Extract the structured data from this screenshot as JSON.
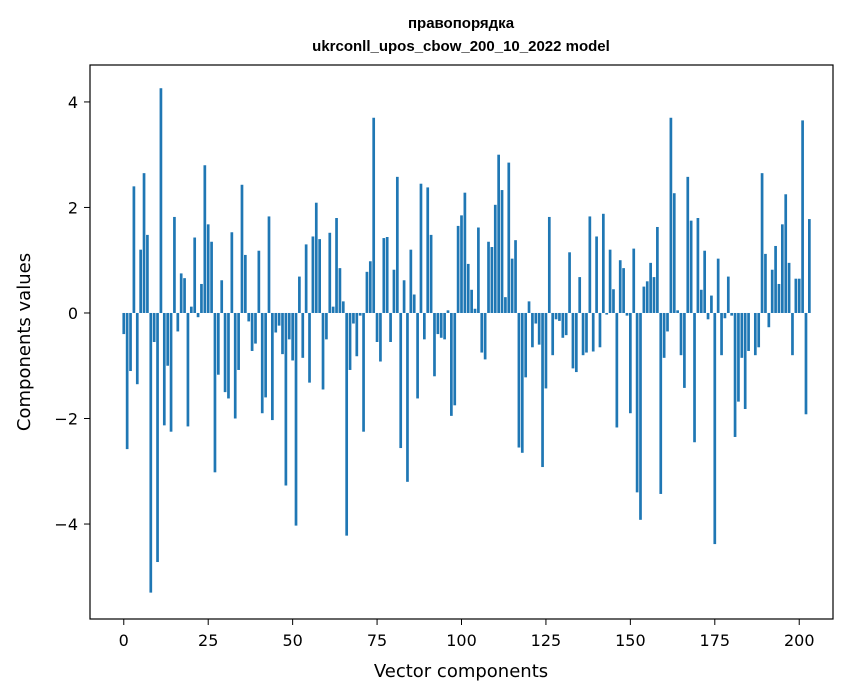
{
  "chart_data": {
    "type": "bar",
    "title_line1": "правопорядка",
    "title_line2": "ukrconll_upos_cbow_200_10_2022 model",
    "xlabel": "Vector components",
    "ylabel": "Components values",
    "xlim": [
      -10,
      210
    ],
    "ylim": [
      -5.8,
      4.7
    ],
    "x_ticks": [
      0,
      25,
      50,
      75,
      100,
      125,
      150,
      175,
      200
    ],
    "y_ticks": [
      -4,
      -2,
      0,
      2,
      4
    ],
    "x_tick_labels": [
      "0",
      "25",
      "50",
      "75",
      "100",
      "125",
      "150",
      "175",
      "200"
    ],
    "y_tick_labels": [
      "−4",
      "−2",
      "0",
      "2",
      "4"
    ],
    "bar_color": "#1f77b4",
    "grid": false,
    "values": [
      -0.4,
      -2.58,
      -1.1,
      2.4,
      -1.35,
      1.2,
      2.65,
      1.48,
      -5.3,
      -0.55,
      -4.72,
      4.26,
      -2.13,
      -1.0,
      -2.25,
      1.82,
      -0.35,
      0.75,
      0.66,
      -2.15,
      0.12,
      1.43,
      -0.08,
      0.55,
      2.8,
      1.68,
      1.35,
      -3.02,
      -1.17,
      0.62,
      -1.5,
      -1.62,
      1.53,
      -2.0,
      -1.08,
      2.43,
      1.1,
      -0.16,
      -0.72,
      -0.58,
      1.18,
      -1.9,
      -1.6,
      1.83,
      -2.03,
      -0.37,
      -0.24,
      -0.78,
      -3.27,
      -0.5,
      -0.9,
      -4.03,
      0.69,
      -0.85,
      1.3,
      -1.32,
      1.45,
      2.09,
      1.4,
      -1.45,
      -0.5,
      1.52,
      0.12,
      1.8,
      0.85,
      0.22,
      -4.22,
      -1.08,
      -0.2,
      -0.82,
      -0.05,
      -2.25,
      0.78,
      0.98,
      3.7,
      -0.55,
      -0.92,
      1.42,
      1.44,
      -0.55,
      0.82,
      2.58,
      -2.56,
      0.62,
      -3.2,
      1.2,
      0.35,
      -1.62,
      2.45,
      -0.5,
      2.38,
      1.48,
      -1.2,
      -0.4,
      -0.47,
      -0.5,
      0.05,
      -1.95,
      -1.75,
      1.65,
      1.85,
      2.28,
      0.93,
      0.44,
      0.08,
      1.62,
      -0.75,
      -0.88,
      1.35,
      1.25,
      2.05,
      3.0,
      2.33,
      0.3,
      2.85,
      1.03,
      1.38,
      -2.55,
      -2.65,
      -1.22,
      0.22,
      -0.65,
      -0.2,
      -0.6,
      -2.92,
      -1.43,
      1.82,
      -0.8,
      -0.12,
      -0.15,
      -0.47,
      -0.42,
      1.15,
      -1.05,
      -1.12,
      0.68,
      -0.8,
      -0.75,
      1.83,
      -0.73,
      1.45,
      -0.65,
      1.88,
      -0.03,
      1.2,
      0.45,
      -2.17,
      1.0,
      0.85,
      -0.05,
      -1.9,
      1.22,
      -3.4,
      -3.92,
      0.5,
      0.6,
      0.95,
      0.68,
      1.63,
      -3.43,
      -0.85,
      -0.35,
      3.7,
      2.27,
      0.05,
      -0.8,
      -1.42,
      2.58,
      1.75,
      -2.45,
      1.8,
      0.44,
      1.18,
      -0.12,
      0.33,
      -4.38,
      1.03,
      -0.8,
      -0.1,
      0.69,
      -0.05,
      -2.35,
      -1.68,
      -0.85,
      -1.82,
      -0.72,
      0.0,
      -0.8,
      -0.65,
      2.65,
      1.12,
      -0.27,
      0.82,
      1.27,
      0.55,
      1.68,
      2.25,
      0.95,
      -0.8,
      0.65,
      0.65,
      3.65,
      -1.92,
      1.78
    ]
  }
}
